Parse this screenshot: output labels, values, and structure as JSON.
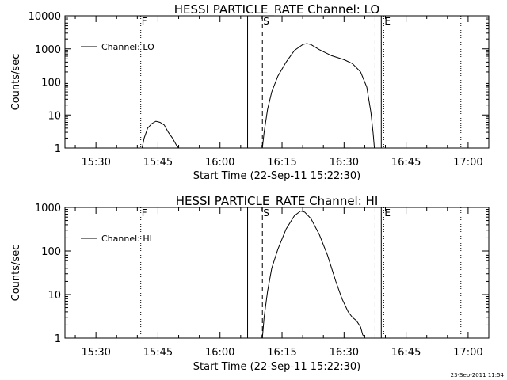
{
  "stamp": "23-Sep-2011 11:54",
  "chart_data": [
    {
      "type": "line",
      "title": "HESSI PARTICLE_RATE Channel: LO",
      "xlabel": "Start Time (22-Sep-11 15:22:30)",
      "ylabel": "Counts/sec",
      "y_scale": "log",
      "xlim": [
        "15:22:30",
        "17:05:00"
      ],
      "ylim": [
        1,
        10000
      ],
      "y_ticks": [
        "1",
        "10",
        "100",
        "1000",
        "10000"
      ],
      "x_ticks": [
        "15:30",
        "15:45",
        "16:00",
        "16:15",
        "16:30",
        "16:45",
        "17:00"
      ],
      "legend_position": "top-left",
      "markers": [
        {
          "time": "15:40:50",
          "style": "dotted",
          "label": "F"
        },
        {
          "time": "16:06:40",
          "style": "solid",
          "label": ""
        },
        {
          "time": "16:10:15",
          "style": "dashed",
          "label": "S"
        },
        {
          "time": "16:37:30",
          "style": "dashed",
          "label": ""
        },
        {
          "time": "16:39:00",
          "style": "solid",
          "label": ""
        },
        {
          "time": "16:39:35",
          "style": "dotted",
          "label": "E"
        },
        {
          "time": "16:58:15",
          "style": "dotted",
          "label": ""
        }
      ],
      "series": [
        {
          "name": "Channel: LO",
          "segments": [
            [
              [
                "15:41:10",
                1
              ],
              [
                "15:41:40",
                2
              ],
              [
                "15:42:30",
                4
              ],
              [
                "15:43:30",
                5.5
              ],
              [
                "15:44:30",
                6.5
              ],
              [
                "15:45:30",
                6
              ],
              [
                "15:46:30",
                5
              ],
              [
                "15:47:30",
                3
              ],
              [
                "15:48:30",
                2
              ],
              [
                "15:49:30",
                1.2
              ],
              [
                "15:50:00",
                1
              ]
            ],
            [
              [
                "16:10:15",
                1
              ],
              [
                "16:10:40",
                3
              ],
              [
                "16:11:30",
                15
              ],
              [
                "16:12:30",
                50
              ],
              [
                "16:14:00",
                150
              ],
              [
                "16:16:00",
                400
              ],
              [
                "16:18:00",
                900
              ],
              [
                "16:20:00",
                1350
              ],
              [
                "16:21:00",
                1450
              ],
              [
                "16:22:00",
                1350
              ],
              [
                "16:24:00",
                950
              ],
              [
                "16:27:00",
                620
              ],
              [
                "16:30:00",
                470
              ],
              [
                "16:32:00",
                360
              ],
              [
                "16:34:00",
                200
              ],
              [
                "16:35:30",
                70
              ],
              [
                "16:36:30",
                12
              ],
              [
                "16:37:00",
                3
              ],
              [
                "16:37:20",
                1
              ]
            ]
          ]
        }
      ]
    },
    {
      "type": "line",
      "title": "HESSI PARTICLE_RATE Channel: HI",
      "xlabel": "Start Time (22-Sep-11 15:22:30)",
      "ylabel": "Counts/sec",
      "y_scale": "log",
      "xlim": [
        "15:22:30",
        "17:05:00"
      ],
      "ylim": [
        1,
        1000
      ],
      "y_ticks": [
        "1",
        "10",
        "100",
        "1000"
      ],
      "x_ticks": [
        "15:30",
        "15:45",
        "16:00",
        "16:15",
        "16:30",
        "16:45",
        "17:00"
      ],
      "legend_position": "top-left",
      "markers": [
        {
          "time": "15:40:50",
          "style": "dotted",
          "label": "F"
        },
        {
          "time": "16:06:40",
          "style": "solid",
          "label": ""
        },
        {
          "time": "16:10:15",
          "style": "dashed",
          "label": "S"
        },
        {
          "time": "16:37:30",
          "style": "dashed",
          "label": ""
        },
        {
          "time": "16:39:00",
          "style": "solid",
          "label": ""
        },
        {
          "time": "16:39:35",
          "style": "dotted",
          "label": "E"
        },
        {
          "time": "16:58:15",
          "style": "dotted",
          "label": ""
        }
      ],
      "series": [
        {
          "name": "Channel: HI",
          "segments": [
            [
              [
                "16:10:15",
                1
              ],
              [
                "16:10:40",
                3
              ],
              [
                "16:11:30",
                12
              ],
              [
                "16:12:30",
                40
              ],
              [
                "16:14:00",
                110
              ],
              [
                "16:16:00",
                320
              ],
              [
                "16:18:00",
                650
              ],
              [
                "16:19:30",
                830
              ],
              [
                "16:20:30",
                780
              ],
              [
                "16:22:00",
                550
              ],
              [
                "16:24:00",
                240
              ],
              [
                "16:26:00",
                80
              ],
              [
                "16:28:00",
                20
              ],
              [
                "16:29:30",
                8
              ],
              [
                "16:31:00",
                4
              ],
              [
                "16:32:00",
                3
              ],
              [
                "16:33:00",
                2.5
              ],
              [
                "16:34:00",
                1.8
              ],
              [
                "16:34:30",
                1.2
              ],
              [
                "16:35:00",
                1
              ]
            ]
          ]
        }
      ]
    }
  ]
}
